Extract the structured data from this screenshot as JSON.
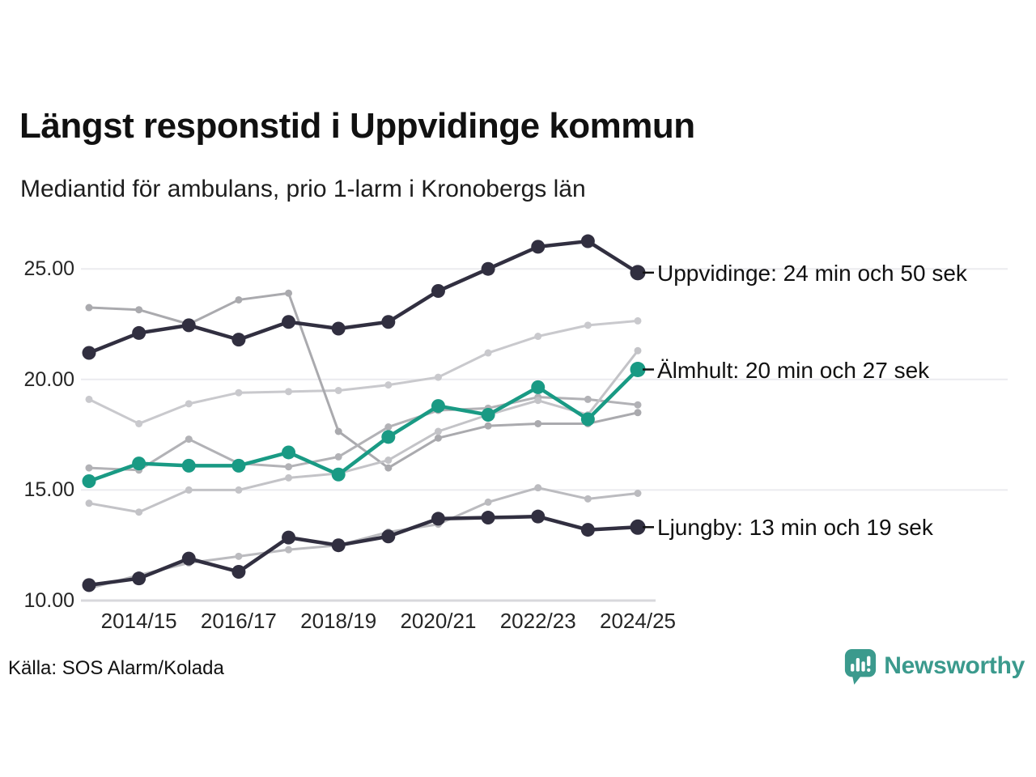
{
  "header": {
    "title": "Längst responstid i Uppvidinge kommun",
    "subtitle": "Mediantid för ambulans, prio 1-larm i Kronobergs län"
  },
  "source": {
    "label": "Källa: SOS Alarm/Kolada"
  },
  "logo": {
    "text": "Newsworthy",
    "color": "#3b9a8d",
    "icon": "speech-bubble-bar-chart-icon"
  },
  "colors": {
    "highlight_dark": "#312f40",
    "highlight_teal": "#199a84",
    "gridline": "#ebebef",
    "axis_line": "#d8d8dc",
    "text": "#111111"
  },
  "chart_data": {
    "type": "line",
    "title": "Längst responstid i Uppvidinge kommun",
    "subtitle": "Mediantid för ambulans, prio 1-larm i Kronobergs län",
    "x": [
      "2013/14",
      "2014/15",
      "2015/16",
      "2016/17",
      "2017/18",
      "2018/19",
      "2019/20",
      "2020/21",
      "2021/22",
      "2022/23",
      "2023/24",
      "2024/25"
    ],
    "x_ticks": [
      {
        "i": 1,
        "label": "2014/15"
      },
      {
        "i": 3,
        "label": "2016/17"
      },
      {
        "i": 5,
        "label": "2018/19"
      },
      {
        "i": 7,
        "label": "2020/21"
      },
      {
        "i": 9,
        "label": "2022/23"
      },
      {
        "i": 11,
        "label": "2024/25"
      }
    ],
    "y_ticks": [
      {
        "v": 25,
        "label": "25.00"
      },
      {
        "v": 20,
        "label": "20.00"
      },
      {
        "v": 15,
        "label": "15.00"
      },
      {
        "v": 10,
        "label": "10.00"
      }
    ],
    "ylim": [
      10,
      26.6
    ],
    "grid": true,
    "legend_position": "right-annotations",
    "unit": "minuter (median)",
    "series": [
      {
        "name": "context-1",
        "role": "context",
        "color": "#c9c9cd",
        "values": [
          19.1,
          18.0,
          18.9,
          19.4,
          19.45,
          19.5,
          19.75,
          20.1,
          21.2,
          21.95,
          22.45,
          22.65
        ]
      },
      {
        "name": "context-2",
        "role": "context",
        "color": "#aaaaae",
        "values": [
          23.25,
          23.15,
          22.5,
          23.6,
          23.9,
          17.65,
          16.0,
          17.35,
          17.9,
          18.0,
          18.0,
          18.5
        ]
      },
      {
        "name": "context-3",
        "role": "context",
        "color": "#b2b2b6",
        "values": [
          16.0,
          15.9,
          17.3,
          16.2,
          16.05,
          16.5,
          17.85,
          18.6,
          18.7,
          19.2,
          19.1,
          18.85
        ]
      },
      {
        "name": "context-4",
        "role": "context",
        "color": "#c3c3c7",
        "values": [
          14.4,
          14.0,
          15.0,
          15.0,
          15.55,
          15.75,
          16.35,
          17.65,
          18.4,
          19.05,
          18.4,
          21.3
        ]
      },
      {
        "name": "context-5",
        "role": "context",
        "color": "#bbbbbf",
        "values": [
          10.55,
          11.15,
          11.7,
          12.0,
          12.3,
          12.5,
          13.1,
          13.45,
          14.45,
          15.1,
          14.6,
          14.85
        ]
      },
      {
        "name": "Ljungby",
        "role": "highlight",
        "color": "#312f40",
        "values": [
          10.7,
          11.0,
          11.9,
          11.3,
          12.85,
          12.5,
          12.9,
          13.7,
          13.75,
          13.8,
          13.2,
          13.32
        ],
        "annotation": "Ljungby: 13 min och 19 sek"
      },
      {
        "name": "Älmhult",
        "role": "highlight",
        "color": "#199a84",
        "values": [
          15.4,
          16.2,
          16.1,
          16.1,
          16.7,
          15.7,
          17.4,
          18.8,
          18.4,
          19.65,
          18.2,
          20.45
        ],
        "annotation": "Älmhult: 20 min och 27 sek"
      },
      {
        "name": "Uppvidinge",
        "role": "highlight",
        "color": "#312f40",
        "values": [
          21.2,
          22.1,
          22.45,
          21.8,
          22.6,
          22.3,
          22.6,
          24.0,
          25.0,
          26.0,
          26.25,
          24.83
        ],
        "annotation": "Uppvidinge: 24 min och 50 sek"
      }
    ]
  }
}
